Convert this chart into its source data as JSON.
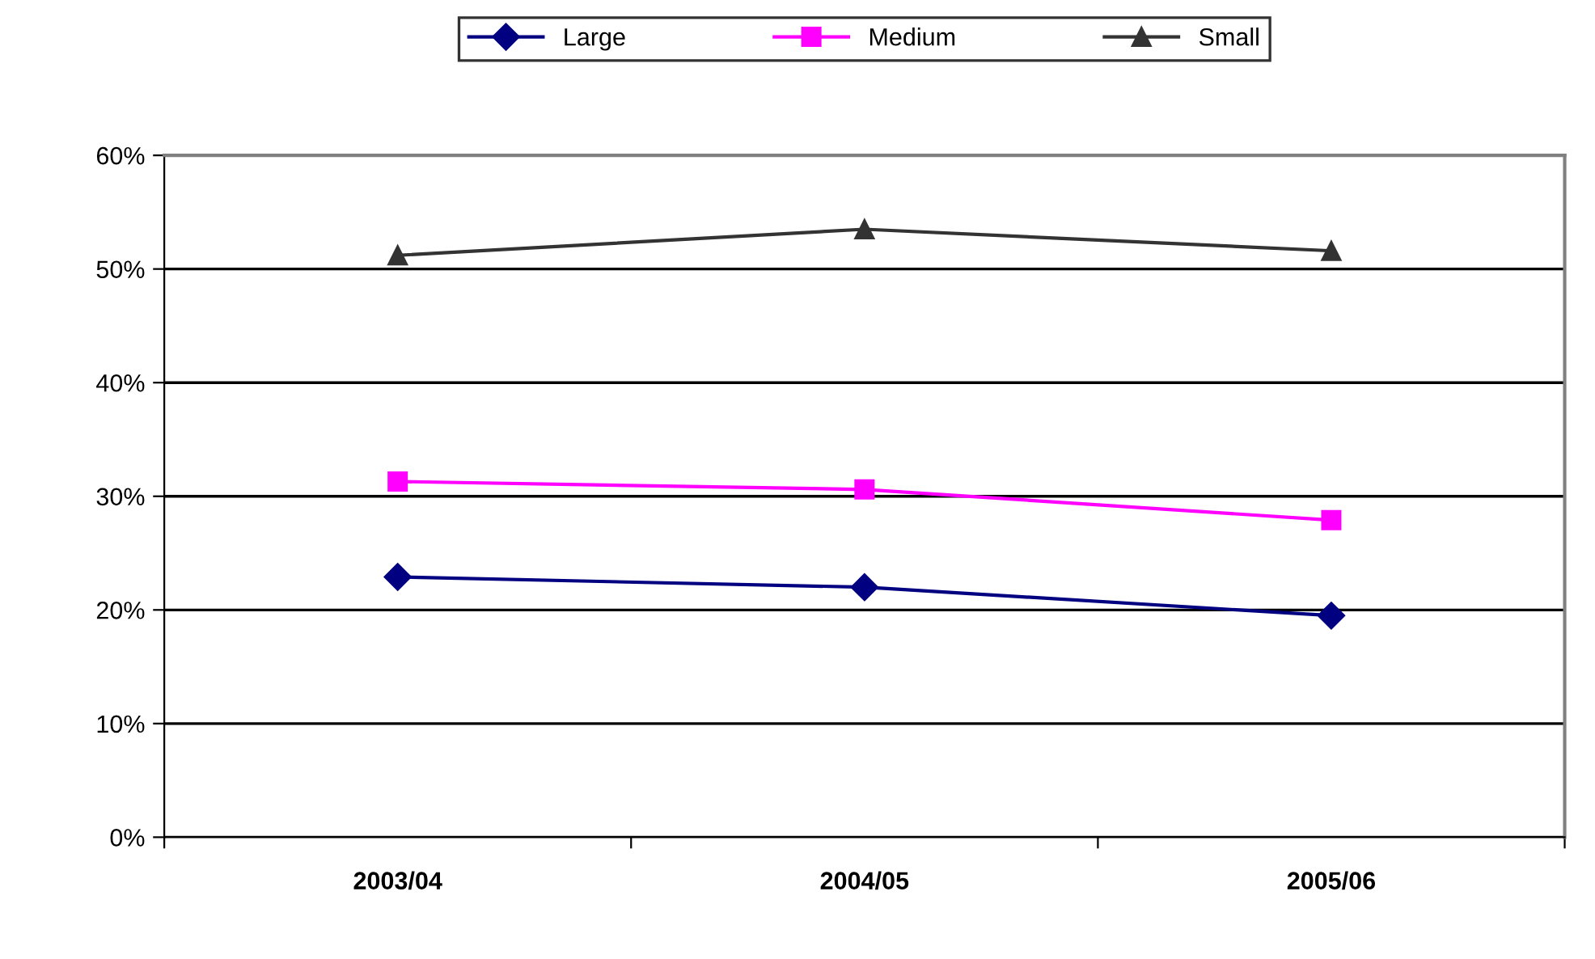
{
  "chart_data": {
    "type": "line",
    "categories": [
      "2003/04",
      "2004/05",
      "2005/06"
    ],
    "series": [
      {
        "name": "Large",
        "color": "#000080",
        "marker": "diamond",
        "values": [
          22.9,
          22.0,
          19.5
        ]
      },
      {
        "name": "Medium",
        "color": "#ff00ff",
        "marker": "square",
        "values": [
          31.3,
          30.6,
          27.9
        ]
      },
      {
        "name": "Small",
        "color": "#333333",
        "marker": "triangle",
        "values": [
          51.2,
          53.5,
          51.6
        ]
      }
    ],
    "ylim": [
      0,
      60
    ],
    "yticks": [
      {
        "value": 0,
        "label": "0%"
      },
      {
        "value": 10,
        "label": "10%"
      },
      {
        "value": 20,
        "label": "20%"
      },
      {
        "value": 30,
        "label": "30%"
      },
      {
        "value": 40,
        "label": "40%"
      },
      {
        "value": 50,
        "label": "50%"
      },
      {
        "value": 60,
        "label": "60%"
      }
    ],
    "grid": "y",
    "legend": "top",
    "line_style": "solid"
  }
}
